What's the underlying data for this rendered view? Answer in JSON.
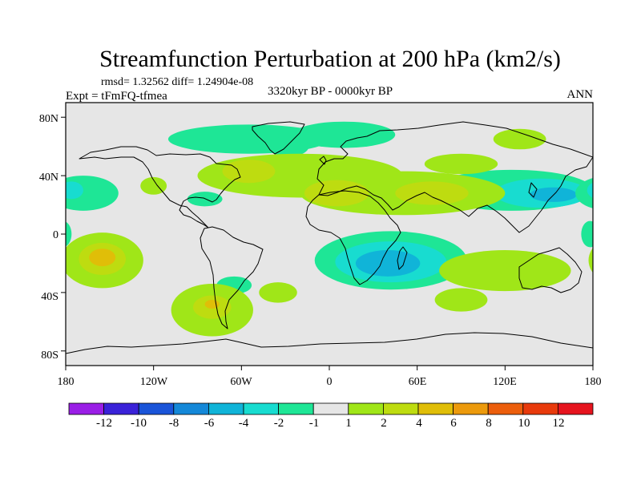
{
  "chart_data": {
    "type": "contour-map",
    "title": "Streamfunction Perturbation at 200 hPa (km2/s)",
    "stats_line": "rmsd= 1.32562 diff= 1.24904e-08",
    "subtitle_left": "Expt = tFmFQ-tfmea",
    "subtitle_center": "3320kyr BP - 0000kyr BP",
    "subtitle_right": "ANN",
    "x_ticks": [
      {
        "value": -180,
        "label": "180"
      },
      {
        "value": -120,
        "label": "120W"
      },
      {
        "value": -60,
        "label": "60W"
      },
      {
        "value": 0,
        "label": "0"
      },
      {
        "value": 60,
        "label": "60E"
      },
      {
        "value": 120,
        "label": "120E"
      },
      {
        "value": 180,
        "label": "180"
      }
    ],
    "y_ticks": [
      {
        "value": 80,
        "label": "80N"
      },
      {
        "value": 40,
        "label": "40N"
      },
      {
        "value": 0,
        "label": "0"
      },
      {
        "value": -40,
        "label": "40S"
      },
      {
        "value": -80,
        "label": "80S"
      }
    ],
    "xlim": [
      -180,
      180
    ],
    "ylim": [
      -90,
      90
    ],
    "colorbar": {
      "labels": [
        "-12",
        "-10",
        "-8",
        "-6",
        "-4",
        "-2",
        "-1",
        "1",
        "2",
        "4",
        "6",
        "8",
        "10",
        "12"
      ],
      "colors": [
        "#9a1ee6",
        "#3a22d8",
        "#1a54d8",
        "#1488d8",
        "#10b4d8",
        "#18dcd0",
        "#1ee696",
        "#e6e6e6",
        "#a0e618",
        "#bedc10",
        "#e0be08",
        "#ec9a0c",
        "#ec5e0c",
        "#e83a0c",
        "#e6141e"
      ]
    },
    "anomalies": [
      {
        "lon": 125,
        "lat": 30,
        "rlon": 55,
        "rlat": 14,
        "level": -1
      },
      {
        "lon": 145,
        "lat": 28,
        "rlon": 32,
        "rlat": 10,
        "level": -2
      },
      {
        "lon": 153,
        "lat": 27,
        "rlon": 16,
        "rlat": 5,
        "level": -4
      },
      {
        "lon": 42,
        "lat": -18,
        "rlon": 52,
        "rlat": 20,
        "level": -1
      },
      {
        "lon": 42,
        "lat": -19,
        "rlon": 38,
        "rlat": 14,
        "level": -2
      },
      {
        "lon": 40,
        "lat": -20,
        "rlon": 22,
        "rlat": 9,
        "level": -4
      },
      {
        "lon": -55,
        "lat": 65,
        "rlon": 55,
        "rlat": 10,
        "level": -1
      },
      {
        "lon": 10,
        "lat": 68,
        "rlon": 35,
        "rlat": 9,
        "level": -1
      },
      {
        "lon": -28,
        "lat": 60,
        "rlon": 14,
        "rlat": 7,
        "level": -1
      },
      {
        "lon": -168,
        "lat": 28,
        "rlon": 24,
        "rlat": 12,
        "level": -1
      },
      {
        "lon": -176,
        "lat": 30,
        "rlon": 8,
        "rlat": 6,
        "level": -2
      },
      {
        "lon": -85,
        "lat": 24,
        "rlon": 12,
        "rlat": 5,
        "level": -1
      },
      {
        "lon": -65,
        "lat": -35,
        "rlon": 12,
        "rlat": 6,
        "level": -1
      },
      {
        "lon": 178,
        "lat": 0,
        "rlon": 6,
        "rlat": 9,
        "level": -1
      },
      {
        "lon": -20,
        "lat": 40,
        "rlon": 70,
        "rlat": 15,
        "level": 1
      },
      {
        "lon": 50,
        "lat": 28,
        "rlon": 70,
        "rlat": 15,
        "level": 1
      },
      {
        "lon": 130,
        "lat": 65,
        "rlon": 18,
        "rlat": 7,
        "level": 1
      },
      {
        "lon": 90,
        "lat": 48,
        "rlon": 25,
        "rlat": 7,
        "level": 1
      },
      {
        "lon": -120,
        "lat": 33,
        "rlon": 9,
        "rlat": 6,
        "level": 1
      },
      {
        "lon": -155,
        "lat": -18,
        "rlon": 28,
        "rlat": 19,
        "level": 1
      },
      {
        "lon": -80,
        "lat": -52,
        "rlon": 28,
        "rlat": 18,
        "level": 1
      },
      {
        "lon": -35,
        "lat": -40,
        "rlon": 13,
        "rlat": 7,
        "level": 1
      },
      {
        "lon": 120,
        "lat": -25,
        "rlon": 45,
        "rlat": 14,
        "level": 1
      },
      {
        "lon": 90,
        "lat": -45,
        "rlon": 18,
        "rlat": 8,
        "level": 1
      },
      {
        "lon": -55,
        "lat": 43,
        "rlon": 18,
        "rlat": 8,
        "level": 2
      },
      {
        "lon": 5,
        "lat": 28,
        "rlon": 22,
        "rlat": 9,
        "level": 2
      },
      {
        "lon": 70,
        "lat": 28,
        "rlon": 25,
        "rlat": 8,
        "level": 2
      },
      {
        "lon": -155,
        "lat": -17,
        "rlon": 16,
        "rlat": 11,
        "level": 2
      },
      {
        "lon": -80,
        "lat": -50,
        "rlon": 13,
        "rlat": 8,
        "level": 2
      },
      {
        "lon": -155,
        "lat": -16,
        "rlon": 9,
        "rlat": 6,
        "level": 4
      },
      {
        "lon": -80,
        "lat": -48,
        "rlon": 5,
        "rlat": 3,
        "level": 4
      }
    ]
  }
}
